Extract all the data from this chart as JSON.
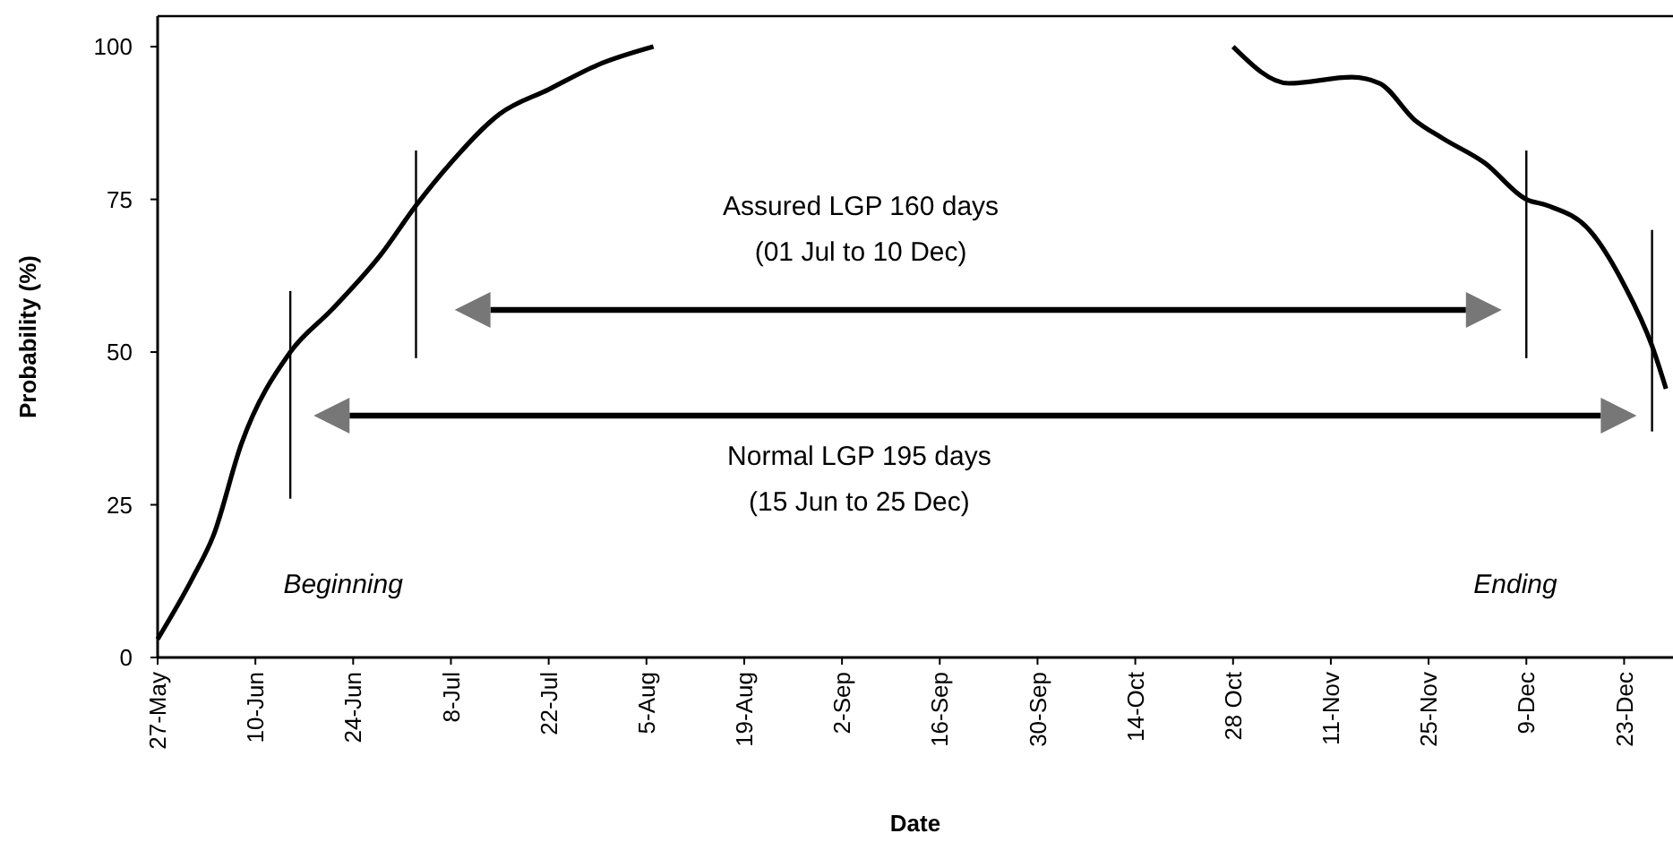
{
  "chart_data": {
    "type": "line",
    "xlabel": "Date",
    "ylabel": "Probability (%)",
    "xlim": [
      "--05-27",
      "--12-30"
    ],
    "ylim": [
      0,
      105
    ],
    "xticks": [
      {
        "value": "--05-27",
        "label": "27-May"
      },
      {
        "value": "--06-10",
        "label": "10-Jun"
      },
      {
        "value": "--06-24",
        "label": "24-Jun"
      },
      {
        "value": "--07-08",
        "label": "8-Jul"
      },
      {
        "value": "--07-22",
        "label": "22-Jul"
      },
      {
        "value": "--08-05",
        "label": "5-Aug"
      },
      {
        "value": "--08-19",
        "label": "19-Aug"
      },
      {
        "value": "--09-02",
        "label": "2-Sep"
      },
      {
        "value": "--09-16",
        "label": "16-Sep"
      },
      {
        "value": "--09-30",
        "label": "30-Sep"
      },
      {
        "value": "--10-14",
        "label": "14-Oct"
      },
      {
        "value": "--10-28",
        "label": "28 Oct"
      },
      {
        "value": "--11-11",
        "label": "11-Nov"
      },
      {
        "value": "--11-25",
        "label": "25-Nov"
      },
      {
        "value": "--12-09",
        "label": "9-Dec"
      },
      {
        "value": "--12-23",
        "label": "23-Dec"
      }
    ],
    "yticks": [
      0,
      25,
      50,
      75,
      100
    ],
    "series": [
      {
        "color": "#000000",
        "x": [
          "--05-27",
          "--06-01",
          "--06-04",
          "--06-08",
          "--06-15",
          "--06-21",
          "--06-28",
          "--07-03",
          "--07-08",
          "--07-15",
          "--07-22",
          "--07-29",
          "--08-06"
        ],
        "values": [
          3,
          13,
          20,
          35,
          50,
          57,
          66,
          74,
          81,
          89,
          93,
          97,
          100
        ]
      },
      {
        "color": "#000000",
        "x": [
          "--10-28",
          "--11-05",
          "--11-14",
          "--11-18",
          "--11-23",
          "--11-27",
          "--12-03",
          "--12-09",
          "--12-12",
          "--12-18",
          "--12-23",
          "--12-27",
          "--12-29"
        ],
        "values": [
          100,
          94,
          95,
          94,
          88,
          85,
          81,
          75,
          74,
          70,
          61,
          51,
          44
        ]
      },
      {
        "color": "#000000",
        "x": [
          "--06-15",
          "--06-15"
        ],
        "values": [
          26,
          60
        ]
      },
      {
        "color": "#000000",
        "x": [
          "--07-03",
          "--07-03"
        ],
        "values": [
          49,
          83
        ]
      },
      {
        "color": "#000000",
        "x": [
          "--12-09",
          "--12-09"
        ],
        "values": [
          49,
          83
        ]
      },
      {
        "color": "#000000",
        "x": [
          "--12-27",
          "--12-27"
        ],
        "values": [
          37,
          70
        ]
      }
    ],
    "annotations": [
      "Assured LGP 160 days\n(01 Jul to 10 Dec)",
      "Normal LGP 195 days\n(15 Jun to 25 Dec)",
      "Beginning",
      "Ending"
    ]
  }
}
